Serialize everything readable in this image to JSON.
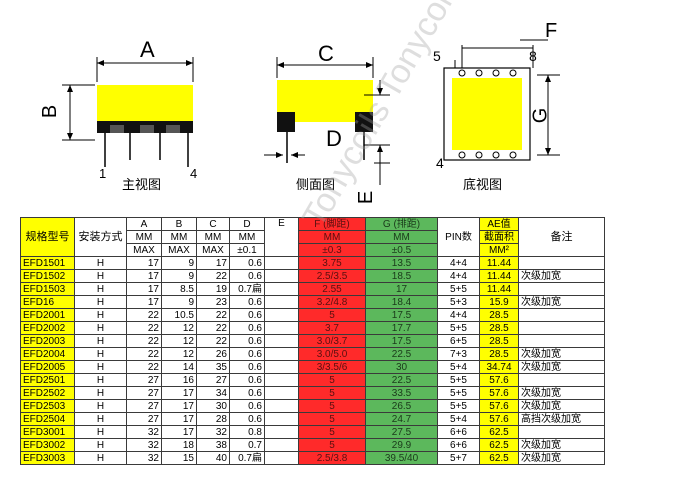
{
  "captions": {
    "front": "主视图",
    "side": "侧面图",
    "bottom": "底视图"
  },
  "dims": {
    "a": "A",
    "b": "B",
    "c": "C",
    "d": "D",
    "e": "E",
    "f": "F",
    "g": "G",
    "pin1": "1",
    "pin4_front": "4",
    "pin5": "5",
    "pin8": "8",
    "pin4": "4"
  },
  "watermark": "Tonycoils Tonycoils Tonycoils",
  "colors": {
    "yellow": "#ffff00",
    "red": "#ff2a2a",
    "green": "#5cb85c"
  },
  "table": {
    "header1": [
      "规格型号",
      "安装方式",
      "A",
      "B",
      "C",
      "D",
      "E",
      "F (脚距)",
      "G (排距)",
      "PIN数",
      "AE值",
      "备注"
    ],
    "header2": [
      "MM",
      "MM",
      "MM",
      "MM",
      "MM",
      "MM",
      "截面积"
    ],
    "header3": [
      "MAX",
      "MAX",
      "MAX",
      "±0.1",
      "±0.3",
      "±0.5",
      "MM²"
    ],
    "rows": [
      [
        "EFD1501",
        "H",
        "17",
        "9",
        "17",
        "0.6",
        "",
        "3.75",
        "13.5",
        "4+4",
        "11.44",
        ""
      ],
      [
        "EFD1502",
        "H",
        "17",
        "9",
        "22",
        "0.6",
        "",
        "2.5/3.5",
        "18.5",
        "4+4",
        "11.44",
        "次级加宽"
      ],
      [
        "EFD1503",
        "H",
        "17",
        "8.5",
        "19",
        "0.7扁",
        "",
        "2.55",
        "17",
        "5+5",
        "11.44",
        ""
      ],
      [
        "EFD16",
        "H",
        "17",
        "9",
        "23",
        "0.6",
        "",
        "3.2/4.8",
        "18.4",
        "5+3",
        "15.9",
        "次级加宽"
      ],
      [
        "EFD2001",
        "H",
        "22",
        "10.5",
        "22",
        "0.6",
        "",
        "5",
        "17.5",
        "4+4",
        "28.5",
        ""
      ],
      [
        "EFD2002",
        "H",
        "22",
        "12",
        "22",
        "0.6",
        "",
        "3.7",
        "17.7",
        "5+5",
        "28.5",
        ""
      ],
      [
        "EFD2003",
        "H",
        "22",
        "12",
        "22",
        "0.6",
        "",
        "3.0/3.7",
        "17.5",
        "6+5",
        "28.5",
        ""
      ],
      [
        "EFD2004",
        "H",
        "22",
        "12",
        "26",
        "0.6",
        "",
        "3.0/5.0",
        "22.5",
        "7+3",
        "28.5",
        "次级加宽"
      ],
      [
        "EFD2005",
        "H",
        "22",
        "14",
        "35",
        "0.6",
        "",
        "3/3.5/6",
        "30",
        "5+4",
        "34.74",
        "次级加宽"
      ],
      [
        "EFD2501",
        "H",
        "27",
        "16",
        "27",
        "0.6",
        "",
        "5",
        "22.5",
        "5+5",
        "57.6",
        ""
      ],
      [
        "EFD2502",
        "H",
        "27",
        "17",
        "34",
        "0.6",
        "",
        "5",
        "33.5",
        "5+5",
        "57.6",
        "次级加宽"
      ],
      [
        "EFD2503",
        "H",
        "27",
        "17",
        "30",
        "0.6",
        "",
        "5",
        "26.5",
        "5+5",
        "57.6",
        "次级加宽"
      ],
      [
        "EFD2504",
        "H",
        "27",
        "17",
        "28",
        "0.6",
        "",
        "5",
        "24.7",
        "5+4",
        "57.6",
        "高挡次级加宽"
      ],
      [
        "EFD3001",
        "H",
        "32",
        "17",
        "32",
        "0.8",
        "",
        "5",
        "27.5",
        "6+6",
        "62.5",
        ""
      ],
      [
        "EFD3002",
        "H",
        "32",
        "18",
        "38",
        "0.7",
        "",
        "5",
        "29.9",
        "6+6",
        "62.5",
        "次级加宽"
      ],
      [
        "EFD3003",
        "H",
        "32",
        "15",
        "40",
        "0.7扁",
        "",
        "2.5/3.8",
        "39.5/40",
        "5+7",
        "62.5",
        "次级加宽"
      ]
    ]
  }
}
